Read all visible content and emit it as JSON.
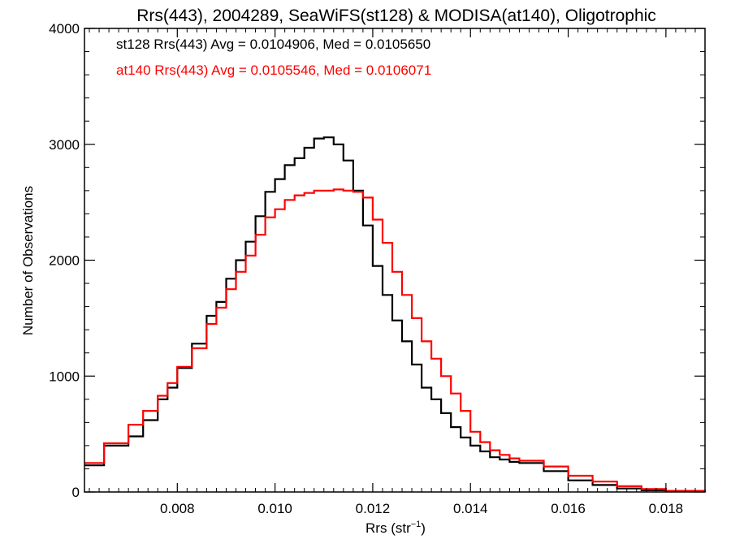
{
  "chart_data": {
    "type": "line",
    "title": "Rrs(443), 2004289, SeaWiFS(st128) & MODISA(at140), Oligotrophic",
    "xlabel_main": "Rrs (str",
    "xlabel_sup": "−1",
    "xlabel_close": ")",
    "ylabel": "Number of Observations",
    "xlim": [
      0.0061,
      0.0188
    ],
    "ylim": [
      0,
      4000
    ],
    "xticks": [
      0.008,
      0.01,
      0.012,
      0.014,
      0.016,
      0.018
    ],
    "xtick_labels": [
      "0.008",
      "0.010",
      "0.012",
      "0.014",
      "0.016",
      "0.018"
    ],
    "yticks": [
      0,
      1000,
      2000,
      3000,
      4000
    ],
    "ytick_labels": [
      "0",
      "1000",
      "2000",
      "3000",
      "4000"
    ],
    "annotations": [
      {
        "text": "st128 Rrs(443) Avg = 0.0104906, Med = 0.0105650",
        "color": "#000000"
      },
      {
        "text": "at140 Rrs(443) Avg = 0.0105546, Med = 0.0106071",
        "color": "#ff0000"
      }
    ],
    "series": [
      {
        "color": "#000000",
        "x": [
          0.0061,
          0.0065,
          0.007,
          0.0073,
          0.0076,
          0.0078,
          0.008,
          0.0083,
          0.0086,
          0.0088,
          0.009,
          0.0092,
          0.0094,
          0.0096,
          0.0098,
          0.01,
          0.0102,
          0.0104,
          0.0106,
          0.0108,
          0.011,
          0.0112,
          0.0114,
          0.0116,
          0.0118,
          0.012,
          0.0122,
          0.0124,
          0.0126,
          0.0128,
          0.013,
          0.0132,
          0.0134,
          0.0136,
          0.0138,
          0.014,
          0.0142,
          0.0144,
          0.0146,
          0.0148,
          0.015,
          0.0155,
          0.016,
          0.0165,
          0.017,
          0.0175,
          0.018,
          0.0188
        ],
        "y": [
          230,
          400,
          480,
          620,
          800,
          900,
          1070,
          1280,
          1520,
          1640,
          1840,
          2000,
          2160,
          2380,
          2590,
          2700,
          2820,
          2880,
          2970,
          3050,
          3060,
          3000,
          2860,
          2600,
          2300,
          1950,
          1700,
          1480,
          1300,
          1100,
          900,
          800,
          680,
          560,
          470,
          400,
          350,
          300,
          280,
          260,
          250,
          180,
          100,
          60,
          30,
          15,
          5,
          0
        ]
      },
      {
        "color": "#ff0000",
        "x": [
          0.0061,
          0.0065,
          0.007,
          0.0073,
          0.0076,
          0.0078,
          0.008,
          0.0083,
          0.0086,
          0.0088,
          0.009,
          0.0092,
          0.0094,
          0.0096,
          0.0098,
          0.01,
          0.0102,
          0.0104,
          0.0106,
          0.0108,
          0.011,
          0.0112,
          0.0114,
          0.0116,
          0.0118,
          0.012,
          0.0122,
          0.0124,
          0.0126,
          0.0128,
          0.013,
          0.0132,
          0.0134,
          0.0136,
          0.0138,
          0.014,
          0.0142,
          0.0144,
          0.0146,
          0.0148,
          0.015,
          0.0155,
          0.016,
          0.0165,
          0.017,
          0.0175,
          0.018,
          0.0188
        ],
        "y": [
          250,
          420,
          580,
          700,
          830,
          940,
          1080,
          1240,
          1450,
          1590,
          1750,
          1900,
          2040,
          2220,
          2370,
          2440,
          2520,
          2560,
          2580,
          2600,
          2600,
          2610,
          2600,
          2590,
          2540,
          2350,
          2150,
          1900,
          1700,
          1500,
          1300,
          1150,
          1000,
          850,
          700,
          520,
          430,
          360,
          320,
          290,
          270,
          220,
          140,
          90,
          50,
          25,
          10,
          0
        ]
      }
    ]
  }
}
